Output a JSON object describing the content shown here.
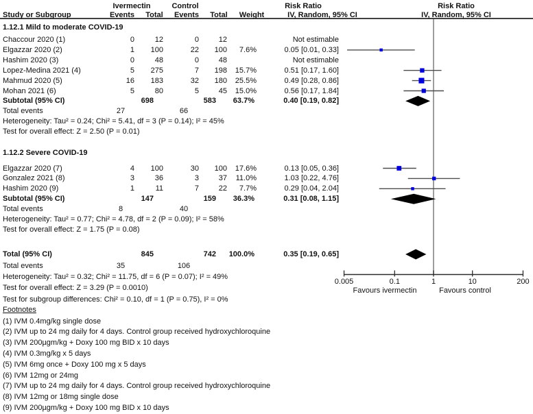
{
  "header": {
    "group1": "Ivermectin",
    "group2": "Control",
    "risk_ratio_stat": "Risk Ratio",
    "risk_ratio_plot": "Risk Ratio",
    "study_col": "Study or Subgroup",
    "events_col": "Events",
    "total_col": "Total",
    "weight_col": "Weight",
    "ci_col": "IV, Random, 95% CI",
    "ci_col_plot": "IV, Random, 95% CI"
  },
  "colors": {
    "marker": "#0000dd",
    "ci_line": "#4d4d4d",
    "reference_line": "#757575",
    "axis": "#2b2b2b",
    "diamond": "#000000"
  },
  "footnotes": {
    "title": "Footnotes",
    "items": [
      "(1) IVM 0.4mg/kg single dose",
      "(2) IVM up to 24 mg daily for 4 days. Control group received hydroxychloroquine",
      "(3) IVM 200µgm/kg + Doxy 100 mg BID x 10 days",
      "(4) IVM 0.3mg/kg x 5 days",
      "(5) IVM 6mg once + Doxy 100 mg x 5 days",
      "(6) IVM 12mg or 24mg",
      "(7) IVM up to 24 mg daily for 4 days. Control group received hydroxychloroquine",
      "(8) IVM 12mg or 18mg single dose",
      "(9) IVM 200µgm/kg + Doxy 100 mg BID x 10 days"
    ]
  },
  "chart_data": {
    "type": "forest",
    "measure": "Risk Ratio",
    "method": "IV, Random, 95% CI",
    "x_axis": {
      "scale": "log",
      "ticks": [
        0.005,
        0.1,
        1,
        10,
        200
      ],
      "labels": [
        "0.005",
        "0.1",
        "1",
        "10",
        "200"
      ],
      "favours_left": "Favours ivermectin",
      "favours_right": "Favours control"
    },
    "sections": [
      {
        "title": "1.12.1 Mild to moderate COVID-19",
        "studies": [
          {
            "name": "Chaccour 2020 (1)",
            "ivm_events": "0",
            "ivm_total": "12",
            "ctl_events": "0",
            "ctl_total": "12",
            "weight": "",
            "ci_text": "Not estimable",
            "est": null,
            "lo": null,
            "hi": null,
            "weight_pct": 0
          },
          {
            "name": "Elgazzar 2020 (2)",
            "ivm_events": "1",
            "ivm_total": "100",
            "ctl_events": "22",
            "ctl_total": "100",
            "weight": "7.6%",
            "ci_text": "0.05 [0.01, 0.33]",
            "est": 0.045,
            "lo": 0.006,
            "hi": 0.33,
            "weight_pct": 7.6
          },
          {
            "name": "Hashim 2020 (3)",
            "ivm_events": "0",
            "ivm_total": "48",
            "ctl_events": "0",
            "ctl_total": "48",
            "weight": "",
            "ci_text": "Not estimable",
            "est": null,
            "lo": null,
            "hi": null,
            "weight_pct": 0
          },
          {
            "name": "Lopez-Medina 2021 (4)",
            "ivm_events": "5",
            "ivm_total": "275",
            "ctl_events": "7",
            "ctl_total": "198",
            "weight": "15.7%",
            "ci_text": "0.51 [0.17, 1.60]",
            "est": 0.51,
            "lo": 0.17,
            "hi": 1.6,
            "weight_pct": 15.7
          },
          {
            "name": "Mahmud 2020 (5)",
            "ivm_events": "16",
            "ivm_total": "183",
            "ctl_events": "32",
            "ctl_total": "180",
            "weight": "25.5%",
            "ci_text": "0.49 [0.28, 0.86]",
            "est": 0.49,
            "lo": 0.28,
            "hi": 0.86,
            "weight_pct": 25.5
          },
          {
            "name": "Mohan 2021 (6)",
            "ivm_events": "5",
            "ivm_total": "80",
            "ctl_events": "5",
            "ctl_total": "45",
            "weight": "15.0%",
            "ci_text": "0.56 [0.17, 1.84]",
            "est": 0.56,
            "lo": 0.17,
            "hi": 1.84,
            "weight_pct": 15.0
          }
        ],
        "subtotal": {
          "label": "Subtotal (95% CI)",
          "ivm_total": "698",
          "ctl_total": "583",
          "weight": "63.7%",
          "ci_text": "0.40 [0.19, 0.82]",
          "est": 0.4,
          "lo": 0.19,
          "hi": 0.82
        },
        "total_events": {
          "label": "Total events",
          "ivm": "27",
          "ctl": "66"
        },
        "heterogeneity": "Heterogeneity: Tau² = 0.24; Chi² = 5.41, df = 3 (P = 0.14); I² = 45%",
        "overall_effect": "Test for overall effect: Z = 2.50 (P = 0.01)"
      },
      {
        "title": "1.12.2 Severe COVID-19",
        "studies": [
          {
            "name": "Elgazzar 2020 (7)",
            "ivm_events": "4",
            "ivm_total": "100",
            "ctl_events": "30",
            "ctl_total": "100",
            "weight": "17.6%",
            "ci_text": "0.13 [0.05, 0.36]",
            "est": 0.13,
            "lo": 0.05,
            "hi": 0.36,
            "weight_pct": 17.6
          },
          {
            "name": "Gonzalez 2021 (8)",
            "ivm_events": "3",
            "ivm_total": "36",
            "ctl_events": "3",
            "ctl_total": "37",
            "weight": "11.0%",
            "ci_text": "1.03 [0.22, 4.76]",
            "est": 1.03,
            "lo": 0.22,
            "hi": 4.76,
            "weight_pct": 11.0
          },
          {
            "name": "Hashim 2020 (9)",
            "ivm_events": "1",
            "ivm_total": "11",
            "ctl_events": "7",
            "ctl_total": "22",
            "weight": "7.7%",
            "ci_text": "0.29 [0.04, 2.04]",
            "est": 0.29,
            "lo": 0.04,
            "hi": 2.04,
            "weight_pct": 7.7
          }
        ],
        "subtotal": {
          "label": "Subtotal (95% CI)",
          "ivm_total": "147",
          "ctl_total": "159",
          "weight": "36.3%",
          "ci_text": "0.31 [0.08, 1.15]",
          "est": 0.31,
          "lo": 0.08,
          "hi": 1.15
        },
        "total_events": {
          "label": "Total events",
          "ivm": "8",
          "ctl": "40"
        },
        "heterogeneity": "Heterogeneity: Tau² = 0.77; Chi² = 4.78, df = 2 (P = 0.09); I² = 58%",
        "overall_effect": "Test for overall effect: Z = 1.75 (P = 0.08)"
      }
    ],
    "total": {
      "label": "Total (95% CI)",
      "ivm_total": "845",
      "ctl_total": "742",
      "weight": "100.0%",
      "ci_text": "0.35 [0.19, 0.65]",
      "est": 0.35,
      "lo": 0.19,
      "hi": 0.65,
      "total_events": {
        "label": "Total events",
        "ivm": "35",
        "ctl": "106"
      },
      "heterogeneity": "Heterogeneity: Tau² = 0.32; Chi² = 11.75, df = 6 (P = 0.07); I² = 49%",
      "overall_effect": "Test for overall effect: Z = 3.29 (P = 0.0010)",
      "subgroup_diff": "Test for subgroup differences: Chi² = 0.10, df = 1 (P = 0.75), I² = 0%"
    }
  }
}
